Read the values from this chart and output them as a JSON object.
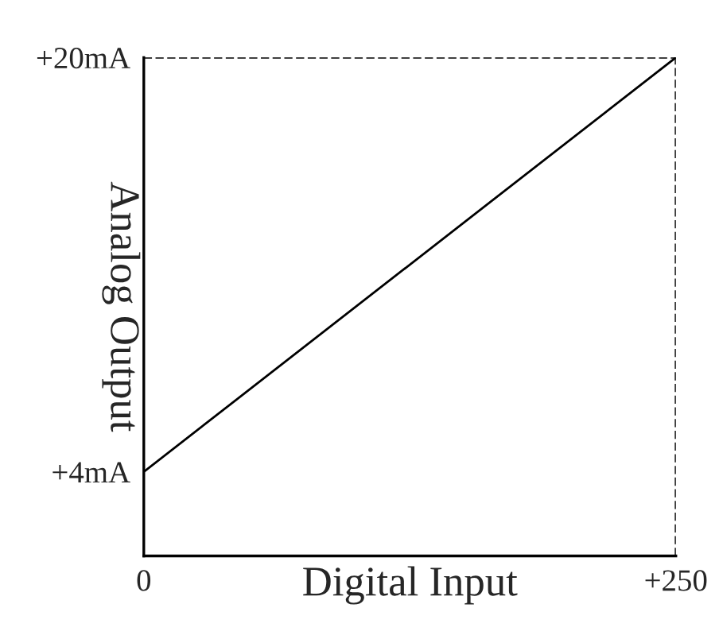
{
  "chart_data": {
    "type": "line",
    "xlabel": "Digital Input",
    "ylabel": "Analog Output",
    "x": [
      0,
      250
    ],
    "series": [
      {
        "color": "#000000",
        "values": [
          4,
          20
        ]
      }
    ],
    "xlim": [
      0,
      250
    ],
    "ylim": [
      0.75,
      20
    ],
    "xticks": [
      {
        "value": 0,
        "label": "0"
      },
      {
        "value": 250,
        "label": "+250"
      }
    ],
    "yticks": [
      {
        "value": 4,
        "label": "+4mA"
      },
      {
        "value": 20,
        "label": "+20mA"
      }
    ],
    "ref_lines": [
      {
        "axis": "x",
        "value": 250,
        "color": "#000000",
        "line_style": "dashed"
      },
      {
        "axis": "y",
        "value": 20,
        "color": "#000000",
        "line_style": "dashed"
      }
    ],
    "grid": false,
    "legend": false,
    "marker": "none",
    "line_style": "solid"
  }
}
